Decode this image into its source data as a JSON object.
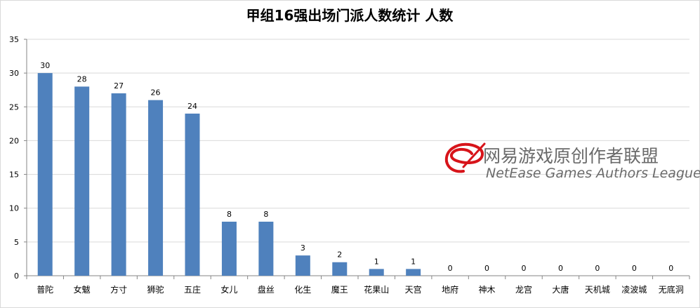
{
  "chart_data": {
    "type": "bar",
    "title": "甲组16强出场门派人数统计 人数",
    "categories": [
      "普陀",
      "女魃",
      "方寸",
      "狮驼",
      "五庄",
      "女儿",
      "盘丝",
      "化生",
      "魔王",
      "花果山",
      "天宫",
      "地府",
      "神木",
      "龙宫",
      "大唐",
      "天机城",
      "凌波城",
      "无底洞"
    ],
    "values": [
      30,
      28,
      27,
      26,
      24,
      8,
      8,
      3,
      2,
      1,
      1,
      0,
      0,
      0,
      0,
      0,
      0,
      0
    ],
    "ylim": [
      0,
      35
    ],
    "yticks": [
      0,
      5,
      10,
      15,
      20,
      25,
      30,
      35
    ],
    "grid": true,
    "data_labels": true,
    "bar_color": "#4f81bd",
    "grid_color": "#d9d9d9"
  },
  "watermark": {
    "cn": "网易游戏原创作者联盟",
    "en": "NetEase Games Authors League",
    "logo": "netease-logo-icon",
    "logo_color": "#d7141a"
  }
}
